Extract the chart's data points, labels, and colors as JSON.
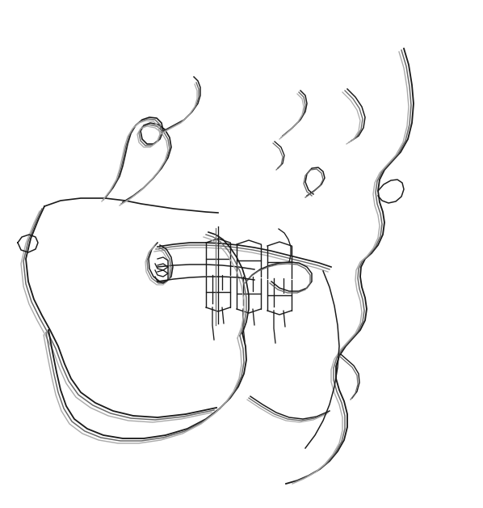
{
  "background_color": "#ffffff",
  "line_colors": {
    "black": "#1a1a1a",
    "dark_grey": "#666666",
    "light_grey": "#aaaaaa"
  },
  "linewidth": 1.2,
  "figsize": [
    5.98,
    6.28
  ],
  "dpi": 100
}
